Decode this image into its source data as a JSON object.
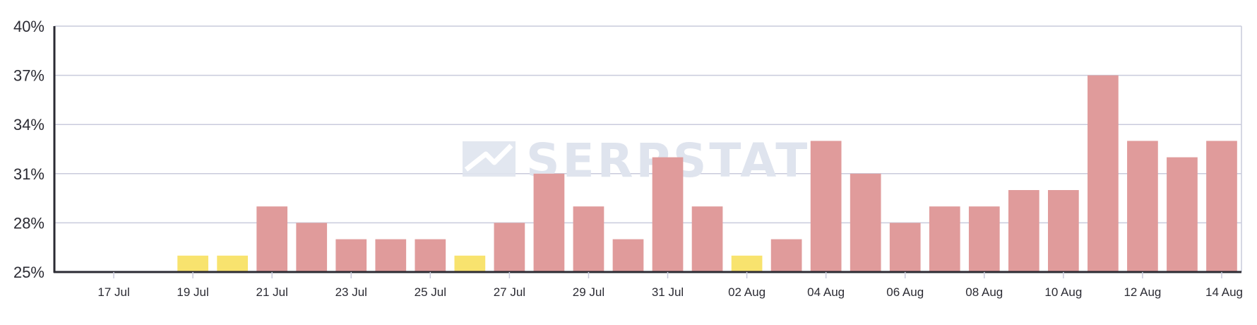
{
  "watermark": {
    "text": "SERPSTAT",
    "logo_icon": "serpstat-logo-icon"
  },
  "colors": {
    "bar_default": "#e09b9b",
    "bar_highlight": "#f8e36e",
    "grid": "#c9cbdc",
    "axis": "#2b2b33",
    "watermark": "#dfe4ee"
  },
  "chart_data": {
    "type": "bar",
    "ylim": [
      25,
      40
    ],
    "yticks": [
      25,
      28,
      31,
      34,
      37,
      40
    ],
    "ytick_labels": [
      "25%",
      "28%",
      "31%",
      "34%",
      "37%",
      "40%"
    ],
    "categories": [
      "16 Jul",
      "17 Jul",
      "18 Jul",
      "19 Jul",
      "20 Jul",
      "21 Jul",
      "22 Jul",
      "23 Jul",
      "24 Jul",
      "25 Jul",
      "26 Jul",
      "27 Jul",
      "28 Jul",
      "29 Jul",
      "30 Jul",
      "31 Jul",
      "01 Aug",
      "02 Aug",
      "03 Aug",
      "04 Aug",
      "05 Aug",
      "06 Aug",
      "07 Aug",
      "08 Aug",
      "09 Aug",
      "10 Aug",
      "11 Aug",
      "12 Aug",
      "13 Aug",
      "14 Aug"
    ],
    "xtick_labels": [
      "17 Jul",
      "19 Jul",
      "21 Jul",
      "23 Jul",
      "25 Jul",
      "27 Jul",
      "29 Jul",
      "31 Jul",
      "02 Aug",
      "04 Aug",
      "06 Aug",
      "08 Aug",
      "10 Aug",
      "12 Aug",
      "14 Aug"
    ],
    "values": [
      null,
      null,
      null,
      26,
      26,
      29,
      28,
      27,
      27,
      27,
      26,
      28,
      31,
      29,
      27,
      32,
      29,
      26,
      27,
      33,
      31,
      28,
      29,
      29,
      30,
      30,
      37,
      33,
      32,
      33
    ],
    "highlighted": [
      "19 Jul",
      "20 Jul",
      "26 Jul",
      "02 Aug"
    ],
    "grid": true,
    "legend": "none"
  }
}
